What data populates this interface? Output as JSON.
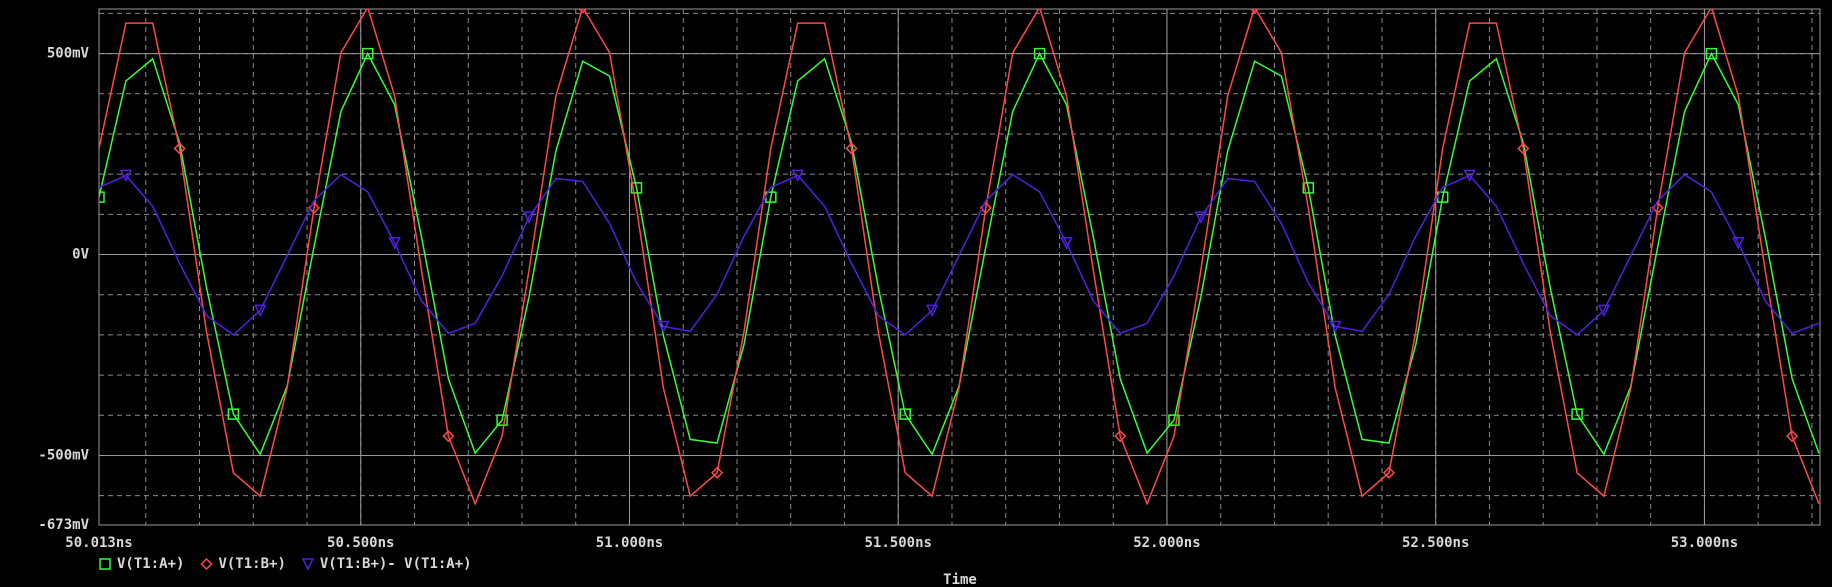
{
  "chart_data": {
    "type": "line",
    "x_label": "Time",
    "x": [
      50.013,
      50.063,
      50.113,
      50.163,
      50.213,
      50.263,
      50.313,
      50.363,
      50.413,
      50.463,
      50.513,
      50.563,
      50.613,
      50.663,
      50.713,
      50.763,
      50.813,
      50.863,
      50.913,
      50.963,
      51.013,
      51.063,
      51.113,
      51.163,
      51.213,
      51.263,
      51.313,
      51.363,
      51.413,
      51.463,
      51.513,
      51.563,
      51.613,
      51.663,
      51.713,
      51.763,
      51.813,
      51.863,
      51.913,
      51.963,
      52.013,
      52.063,
      52.113,
      52.163,
      52.213,
      52.263,
      52.313,
      52.363,
      52.413,
      52.463,
      52.513,
      52.563,
      52.613,
      52.663,
      52.713,
      52.763,
      52.813,
      52.863,
      52.913,
      52.963,
      53.013,
      53.063,
      53.113,
      53.163,
      53.213
    ],
    "series": [
      {
        "name": "V(T1:A+)",
        "color": "#33ff33",
        "marker": "square",
        "values": [
          143,
          432,
          487,
          278,
          -82,
          -397,
          -497,
          -328,
          19,
          356,
          500,
          373,
          44,
          -309,
          -494,
          -412,
          -106,
          258,
          481,
          444,
          166,
          -202,
          -460,
          -469,
          -224,
          143,
          432,
          487,
          278,
          -82,
          -397,
          -497,
          -328,
          19,
          356,
          500,
          373,
          44,
          -309,
          -494,
          -412,
          -106,
          258,
          481,
          444,
          166,
          -202,
          -460,
          -469,
          -224,
          143,
          432,
          487,
          278,
          -82,
          -397,
          -497,
          -328,
          19,
          356,
          500,
          373,
          44,
          -309,
          -494
        ]
      },
      {
        "name": "V(T1:B+)",
        "color": "#ff4848",
        "marker": "diamond",
        "values": [
          264,
          576,
          576,
          264,
          -192,
          -543,
          -601,
          -332,
          116,
          502,
          615,
          395,
          -39,
          -452,
          -620,
          -452,
          -39,
          395,
          615,
          502,
          116,
          -332,
          -601,
          -543,
          -192,
          264,
          576,
          576,
          264,
          -192,
          -543,
          -601,
          -332,
          116,
          502,
          615,
          395,
          -39,
          -452,
          -620,
          -452,
          -39,
          395,
          615,
          502,
          116,
          -332,
          -601,
          -543,
          -192,
          264,
          576,
          576,
          264,
          -192,
          -543,
          -601,
          -332,
          116,
          502,
          615,
          395,
          -39,
          -452,
          -620
        ]
      },
      {
        "name": "V(T1:B+)- V(T1:A+)",
        "color": "#5020e0",
        "marker": "triangle",
        "values": [
          167,
          197,
          120,
          -22,
          -152,
          -200,
          -139,
          -3,
          134,
          199,
          156,
          29,
          -115,
          -196,
          -171,
          -53,
          93,
          189,
          182,
          77,
          -70,
          -179,
          -191,
          -99,
          46,
          167,
          197,
          120,
          -22,
          -152,
          -200,
          -139,
          -3,
          134,
          199,
          156,
          29,
          -115,
          -196,
          -171,
          -53,
          93,
          189,
          182,
          77,
          -70,
          -179,
          -191,
          -99,
          46,
          167,
          197,
          120,
          -22,
          -152,
          -200,
          -139,
          -3,
          134,
          199,
          156,
          29,
          -115,
          -196,
          -171
        ]
      }
    ],
    "xlim": [
      50.013,
      53.215
    ],
    "xticks": [
      {
        "value": 50.013,
        "label": "50.013ns"
      },
      {
        "value": 50.5,
        "label": "50.500ns"
      },
      {
        "value": 51.0,
        "label": "51.000ns"
      },
      {
        "value": 51.5,
        "label": "51.500ns"
      },
      {
        "value": 52.0,
        "label": "52.000ns"
      },
      {
        "value": 52.5,
        "label": "52.500ns"
      },
      {
        "value": 53.0,
        "label": "53.000ns"
      }
    ],
    "ylim": [
      -673,
      611
    ],
    "yticks": [
      {
        "value": 500,
        "label": "500mV"
      },
      {
        "value": 0,
        "label": "0V"
      },
      {
        "value": -500,
        "label": "-500mV"
      },
      {
        "value": -673,
        "label": "-673mV"
      }
    ],
    "grid": true,
    "legend": "bottom-left"
  }
}
